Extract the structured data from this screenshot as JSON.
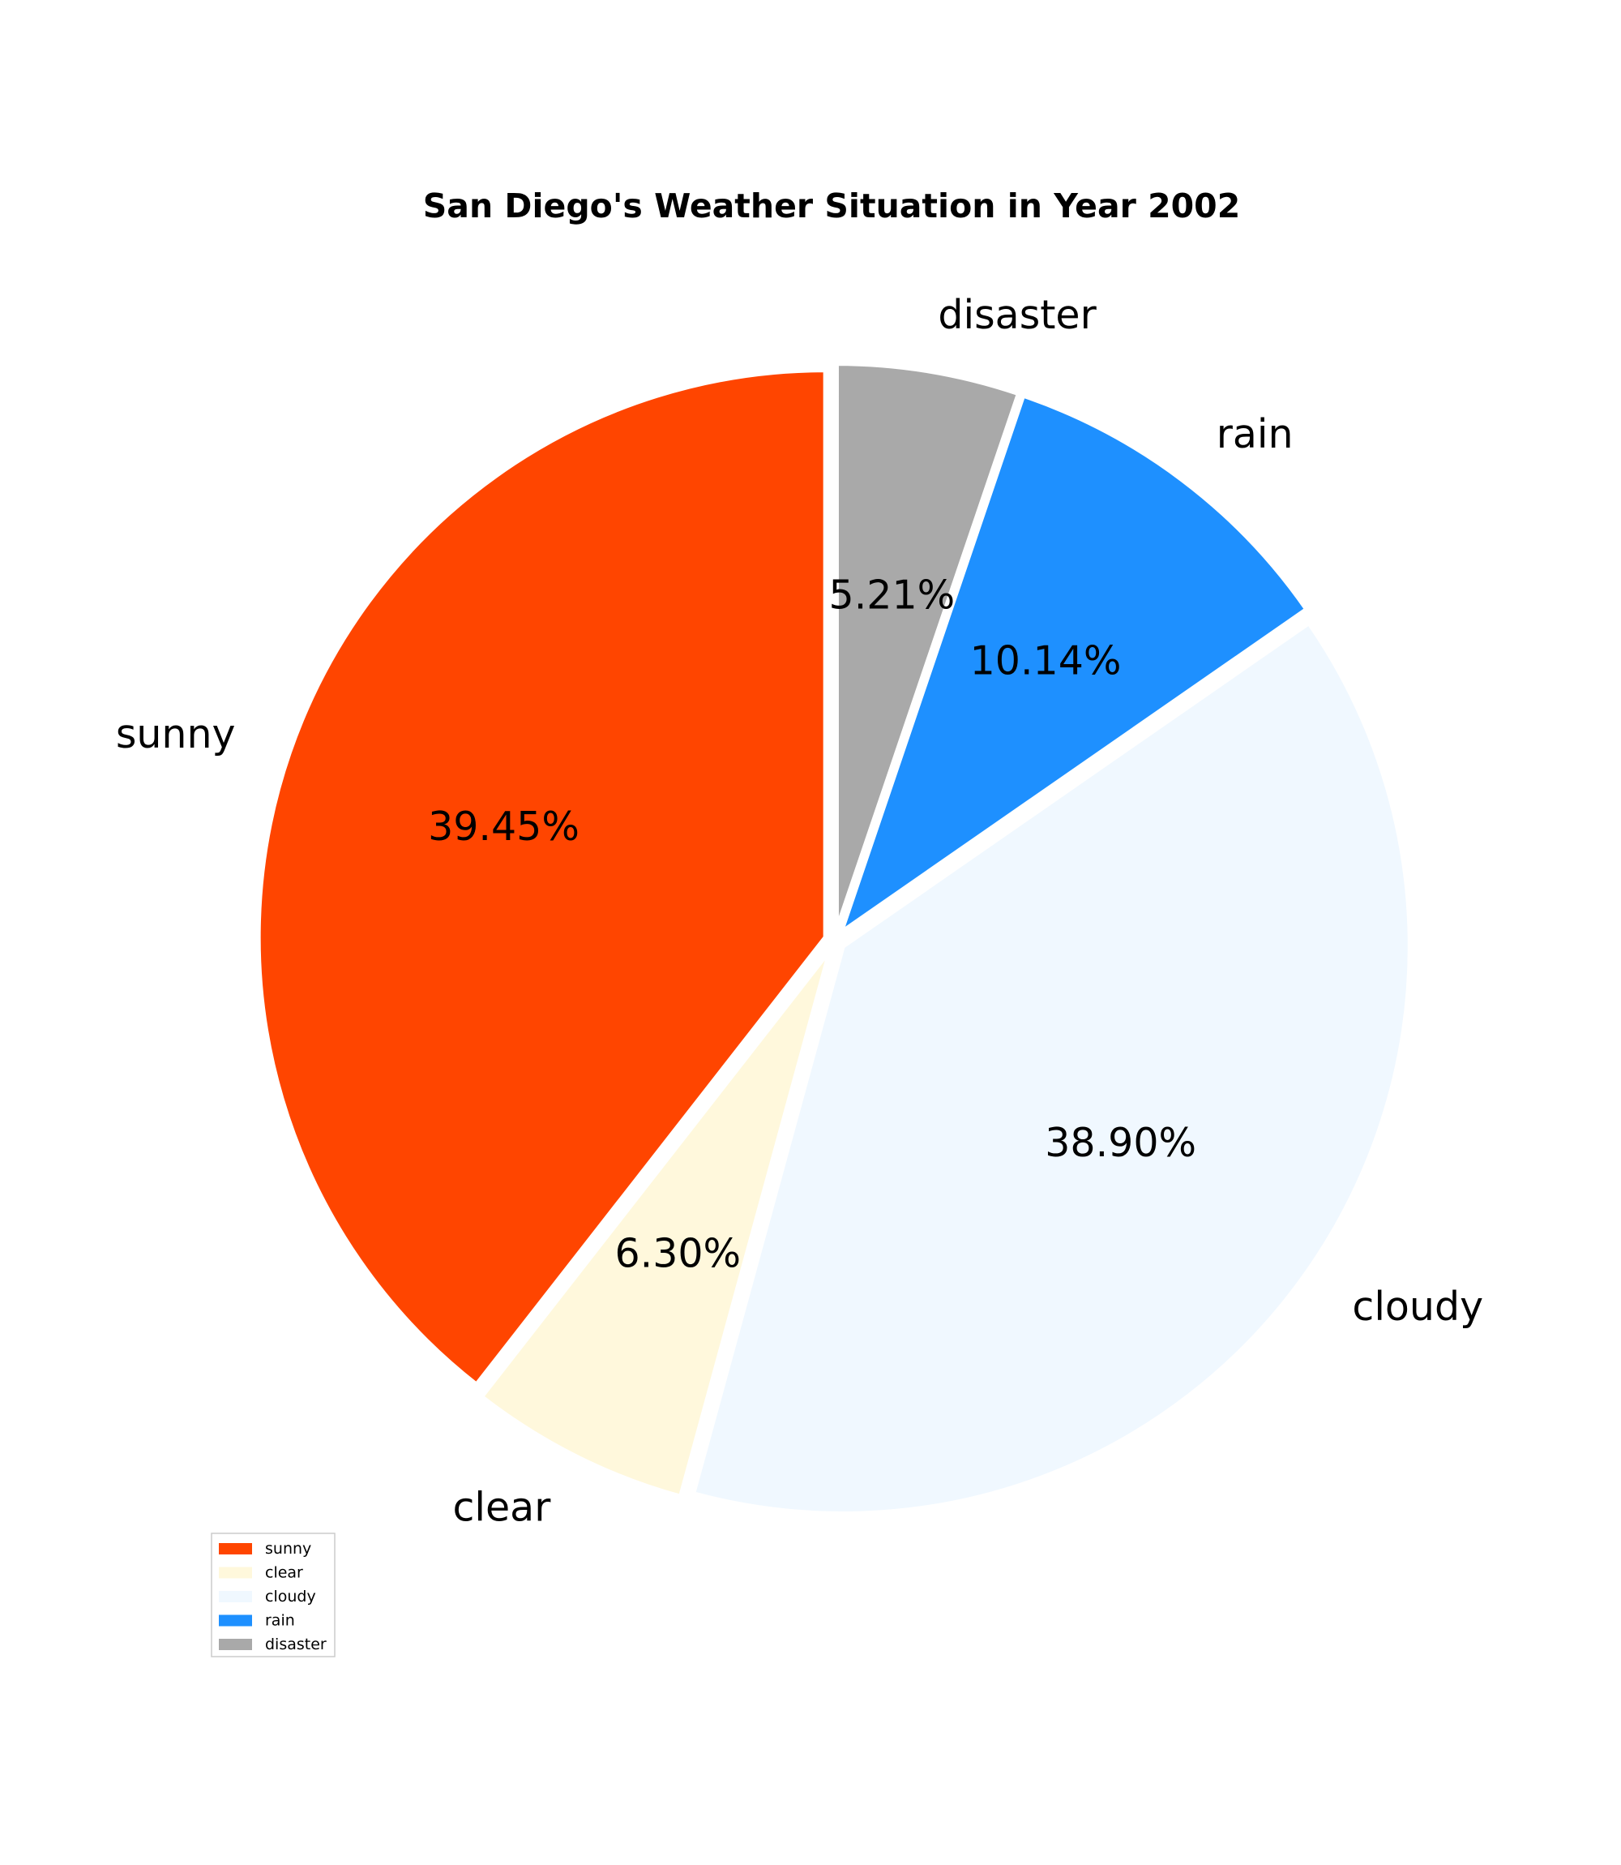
{
  "chart_data": {
    "type": "pie",
    "title": "San Diego's Weather Situation in Year 2002",
    "categories": [
      "sunny",
      "clear",
      "cloudy",
      "rain",
      "disaster"
    ],
    "values": [
      39.45,
      6.3,
      38.9,
      10.14,
      5.21
    ],
    "value_labels": [
      "39.45%",
      "6.30%",
      "38.90%",
      "10.14%",
      "5.21%"
    ],
    "colors": [
      "#FF4500",
      "#FFF8DC",
      "#F0F8FF",
      "#1E90FF",
      "#A9A9A9"
    ],
    "start_angle_deg": 90,
    "direction": "counterclockwise",
    "exploded": true,
    "legend": {
      "placement": "lower-left",
      "entries": [
        "sunny",
        "clear",
        "cloudy",
        "rain",
        "disaster"
      ]
    }
  }
}
